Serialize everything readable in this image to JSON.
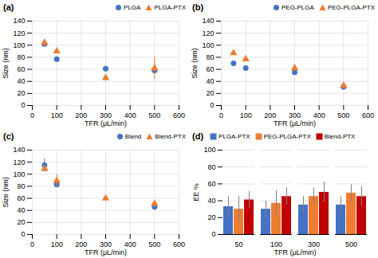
{
  "chart_data": [
    {
      "type": "scatter",
      "title": "(a)",
      "xlabel": "TFR (μL/min)",
      "ylabel": "Size (nm)",
      "xlim": [
        0,
        600
      ],
      "xticks": [
        0,
        100,
        200,
        300,
        400,
        500,
        600
      ],
      "ylim": [
        0,
        140
      ],
      "yticks": [
        0,
        20,
        40,
        60,
        80,
        100,
        120,
        140
      ],
      "grid": true,
      "legend": "upper right",
      "series": [
        {
          "name": "PLGA",
          "color": "#4472C4",
          "marker": "circle",
          "x": [
            50,
            100,
            300,
            500
          ],
          "values": [
            102,
            77,
            61,
            58
          ],
          "yerr": [
            3,
            3,
            2,
            3
          ]
        },
        {
          "name": "PLGA-PTX",
          "color": "#ED7D31",
          "marker": "triangle",
          "x": [
            50,
            100,
            300,
            500
          ],
          "values": [
            104,
            90,
            46,
            62
          ],
          "yerr": [
            3,
            3,
            4,
            18
          ]
        }
      ]
    },
    {
      "type": "scatter",
      "title": "(b)",
      "xlabel": "TFR (μL/min)",
      "ylabel": "Size (nm)",
      "xlim": [
        0,
        600
      ],
      "xticks": [
        0,
        100,
        200,
        300,
        400,
        500,
        600
      ],
      "ylim": [
        0,
        140
      ],
      "yticks": [
        0,
        20,
        40,
        60,
        80,
        100,
        120,
        140
      ],
      "grid": true,
      "legend": "upper right",
      "series": [
        {
          "name": "PEG-PLGA",
          "color": "#4472C4",
          "marker": "circle",
          "x": [
            50,
            100,
            300,
            500
          ],
          "values": [
            70,
            62,
            55,
            31
          ],
          "yerr": [
            2,
            2,
            2,
            2
          ]
        },
        {
          "name": "PEG-PLGA-PTX",
          "color": "#ED7D31",
          "marker": "triangle",
          "x": [
            50,
            100,
            300,
            500
          ],
          "values": [
            87,
            77,
            62,
            33
          ],
          "yerr": [
            3,
            3,
            4,
            2
          ]
        }
      ]
    },
    {
      "type": "scatter",
      "title": "(c)",
      "xlabel": "TFR (μL/min)",
      "ylabel": "Size (nm)",
      "xlim": [
        0,
        600
      ],
      "xticks": [
        0,
        100,
        200,
        300,
        400,
        500,
        600
      ],
      "ylim": [
        0,
        140
      ],
      "yticks": [
        0,
        20,
        40,
        60,
        80,
        100,
        120,
        140
      ],
      "grid": true,
      "legend": "upper right",
      "series": [
        {
          "name": "Blend",
          "color": "#4472C4",
          "marker": "circle",
          "x": [
            50,
            100,
            500
          ],
          "values": [
            115,
            83,
            46
          ],
          "yerr": [
            10,
            4,
            3
          ]
        },
        {
          "name": "Blend-PTX",
          "color": "#ED7D31",
          "marker": "triangle",
          "x": [
            50,
            100,
            300,
            500
          ],
          "values": [
            109,
            89,
            60,
            51
          ],
          "yerr": [
            5,
            10,
            4,
            5
          ]
        }
      ]
    },
    {
      "type": "bar",
      "title": "(d)",
      "xlabel": "TFR (μL/min)",
      "ylabel": "EE %",
      "categories": [
        "50",
        "100",
        "300",
        "500"
      ],
      "ylim": [
        0,
        100
      ],
      "yticks": [
        0,
        20,
        40,
        60,
        80,
        100
      ],
      "grid": "y",
      "legend": "upper left",
      "series": [
        {
          "name": "PLGA-PTX",
          "color": "#4472C4",
          "values": [
            33,
            30,
            35,
            35
          ],
          "yerr": [
            12,
            10,
            10,
            10
          ]
        },
        {
          "name": "PEG-PLGA-PTX",
          "color": "#ED7D31",
          "values": [
            30,
            37,
            45,
            49
          ],
          "yerr": [
            15,
            15,
            10,
            10
          ]
        },
        {
          "name": "Blend-PTX",
          "color": "#C00000",
          "values": [
            41,
            45,
            50,
            45
          ],
          "yerr": [
            10,
            10,
            12,
            12
          ]
        }
      ]
    }
  ]
}
